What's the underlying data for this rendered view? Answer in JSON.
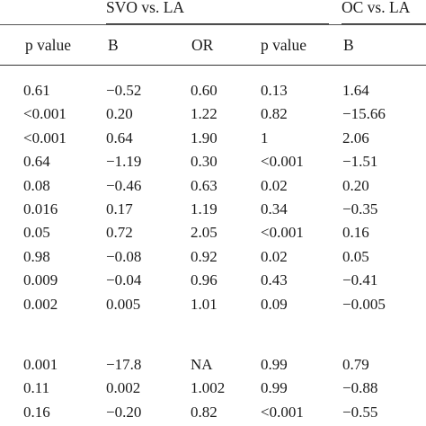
{
  "table": {
    "group_headers": {
      "svo_vs_la": "SVO vs. LA",
      "oc_vs_la": "OC vs. LA"
    },
    "columns": [
      "p value",
      "B",
      "OR",
      "p value",
      "B"
    ],
    "rows_block1": [
      [
        "0.61",
        "−0.52",
        "0.60",
        "0.13",
        "1.64"
      ],
      [
        "<0.001",
        "0.20",
        "1.22",
        "0.82",
        "−15.66"
      ],
      [
        "<0.001",
        "0.64",
        "1.90",
        "1",
        "2.06"
      ],
      [
        "0.64",
        "−1.19",
        "0.30",
        "<0.001",
        "−1.51"
      ],
      [
        "0.08",
        "−0.46",
        "0.63",
        "0.02",
        "0.20"
      ],
      [
        "0.016",
        "0.17",
        "1.19",
        "0.34",
        "−0.35"
      ],
      [
        "0.05",
        "0.72",
        "2.05",
        "<0.001",
        "0.16"
      ],
      [
        "0.98",
        "−0.08",
        "0.92",
        "0.02",
        "0.05"
      ],
      [
        "0.009",
        "−0.04",
        "0.96",
        "0.43",
        "−0.41"
      ],
      [
        "0.002",
        "0.005",
        "1.01",
        "0.09",
        "−0.005"
      ]
    ],
    "rows_block2": [
      [
        "0.001",
        "−17.8",
        "NA",
        "0.99",
        "0.79"
      ],
      [
        "0.11",
        "0.002",
        "1.002",
        "0.99",
        "−0.88"
      ],
      [
        "0.16",
        "−0.20",
        "0.82",
        "<0.001",
        "−0.55"
      ]
    ]
  }
}
